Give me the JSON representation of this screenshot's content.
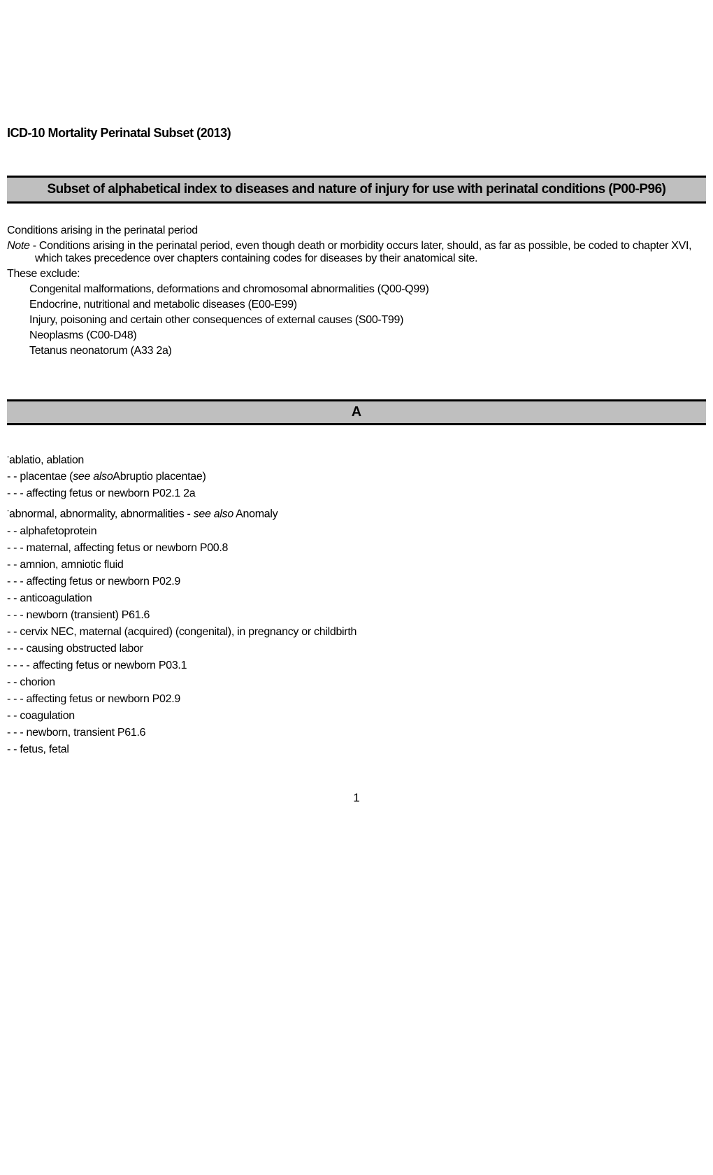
{
  "doc_title": "ICD-10 Mortality Perinatal Subset (2013)",
  "main_header": "Subset of alphabetical index to diseases and nature of injury for use with perinatal conditions (P00-P96)",
  "intro": "Conditions arising in the perinatal period",
  "note_prefix": "Note",
  "note_body": " - Conditions arising in the perinatal period, even though death or morbidity occurs later, should, as far as possible, be coded to chapter XVI, which takes precedence over chapters containing codes for diseases by their anatomical site.",
  "exclude_header": "These exclude:",
  "excludes": [
    "Congenital malformations, deformations and chromosomal abnormalities (Q00-Q99)",
    "Endocrine, nutritional and metabolic diseases (E00-E99)",
    "Injury, poisoning and certain other consequences of external causes (S00-T99)",
    "Neoplasms (C00-D48)",
    "Tetanus neonatorum (A33 2a)"
  ],
  "letter_header": "A",
  "entries": {
    "e1": "ablatio, ablation",
    "e2a": "- - placentae (",
    "e2b": "see also",
    "e2c": "Abruptio placentae)",
    "e3": "- - - affecting fetus or newborn P02.1 2a",
    "e4a": "abnormal, abnormality, abnormalities -  ",
    "e4b": "see also",
    "e4c": " Anomaly",
    "e5": "- - alphafetoprotein",
    "e6": "- - - maternal, affecting fetus or newborn P00.8",
    "e7": "- - amnion, amniotic fluid",
    "e8": "- - - affecting fetus or newborn P02.9",
    "e9": "- - anticoagulation",
    "e10": "- - - newborn (transient) P61.6",
    "e11": "- - cervix NEC, maternal (acquired) (congenital), in pregnancy or childbirth",
    "e12": "- - - causing obstructed labor",
    "e13": "- - - - affecting fetus or newborn P03.1",
    "e14": "- - chorion",
    "e15": "- - - affecting fetus or newborn P02.9",
    "e16": "- - coagulation",
    "e17": "- - - newborn, transient P61.6",
    "e18": "- - fetus, fetal"
  },
  "page_num": "1"
}
